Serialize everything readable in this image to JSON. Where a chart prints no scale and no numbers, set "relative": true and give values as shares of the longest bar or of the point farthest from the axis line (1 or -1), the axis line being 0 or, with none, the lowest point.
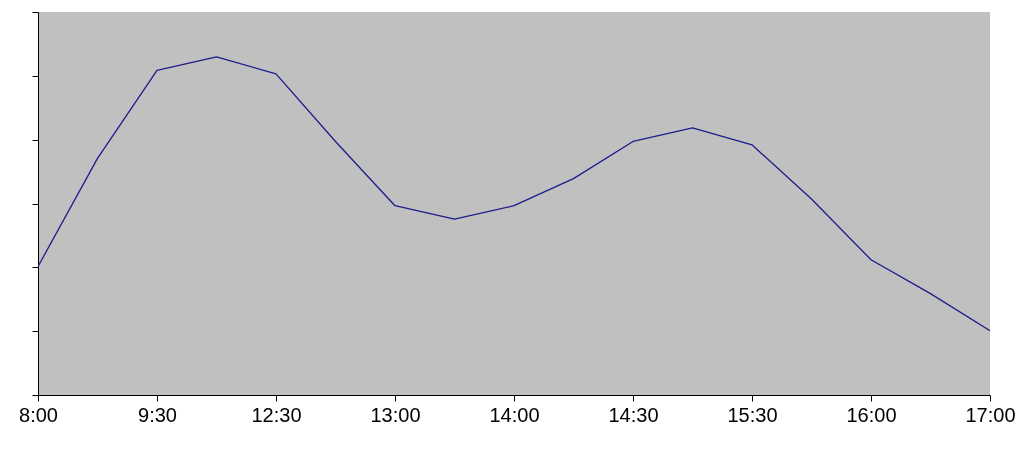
{
  "chart_data": {
    "type": "line",
    "relative": true,
    "marker": "none",
    "grid": false,
    "categories": [
      "8:00",
      null,
      "9:30",
      null,
      "12:30",
      null,
      "13:00",
      null,
      "14:00",
      null,
      "14:30",
      null,
      "15:30",
      null,
      "16:00",
      null,
      "17:00"
    ],
    "series": [
      {
        "color": "#1c1c8c",
        "values": [
          0.38,
          0.7,
          0.96,
          1,
          0.95,
          0.75,
          0.56,
          0.52,
          0.56,
          0.64,
          0.75,
          0.79,
          0.74,
          0.58,
          0.4,
          0.3,
          0.19
        ]
      }
    ]
  }
}
